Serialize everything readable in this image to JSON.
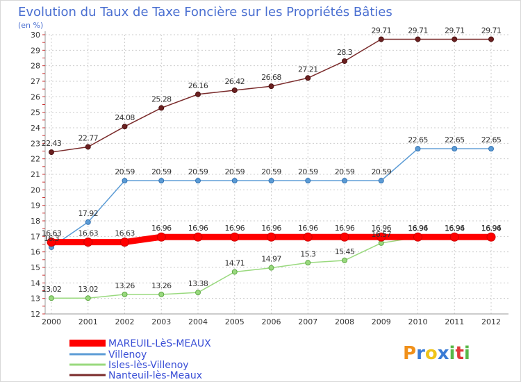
{
  "chart_data": {
    "type": "line",
    "title": "Evolution du Taux de Taxe Foncière sur les Propriétés Bâties",
    "subtitle": "(en %)",
    "x": [
      "2000",
      "2001",
      "2002",
      "2003",
      "2004",
      "2005",
      "2006",
      "2007",
      "2008",
      "2009",
      "2010",
      "2011",
      "2012"
    ],
    "ylim": [
      12,
      30
    ],
    "yticks": [
      12,
      13,
      14,
      15,
      16,
      17,
      18,
      19,
      20,
      21,
      22,
      23,
      24,
      25,
      26,
      27,
      28,
      29,
      30
    ],
    "grid": true,
    "legend_position": "bottom-left",
    "series": [
      {
        "name": "MAREUIL-LèS-MEAUX",
        "color": "#ff0000",
        "values": [
          16.63,
          16.63,
          16.63,
          16.96,
          16.96,
          16.96,
          16.96,
          16.96,
          16.96,
          16.96,
          16.96,
          16.96,
          16.96
        ],
        "labels": [
          "16.63",
          "16.63",
          "16.63",
          "16.96",
          "16.96",
          "16.96",
          "16.96",
          "16.96",
          "16.96",
          "16.96",
          "16.96",
          "16.96",
          "16.96"
        ]
      },
      {
        "name": "Villenoy",
        "color": "#5b9bd5",
        "values": [
          16.3,
          17.92,
          20.59,
          20.59,
          20.59,
          20.59,
          20.59,
          20.59,
          20.59,
          20.59,
          22.65,
          22.65,
          22.65
        ],
        "labels": [
          "16.3",
          "17.92",
          "20.59",
          "20.59",
          "20.59",
          "20.59",
          "20.59",
          "20.59",
          "20.59",
          "20.59",
          "22.65",
          "22.65",
          "22.65"
        ]
      },
      {
        "name": "Isles-lès-Villenoy",
        "color": "#99d97e",
        "values": [
          13.02,
          13.02,
          13.26,
          13.26,
          13.38,
          14.71,
          14.97,
          15.3,
          15.45,
          16.57,
          16.94,
          16.94,
          16.94
        ],
        "labels": [
          "13.02",
          "13.02",
          "13.26",
          "13.26",
          "13.38",
          "14.71",
          "14.97",
          "15.3",
          "15.45",
          "16.57",
          "16.94",
          "16.94",
          "16.94"
        ]
      },
      {
        "name": "Nanteuil-lès-Meaux",
        "color": "#7a2b2b",
        "values": [
          22.43,
          22.77,
          24.08,
          25.28,
          26.16,
          26.42,
          26.68,
          27.21,
          28.3,
          29.71,
          29.71,
          29.71,
          29.71
        ],
        "labels": [
          "22.43",
          "22.77",
          "24.08",
          "25.28",
          "26.16",
          "26.42",
          "26.68",
          "27.21",
          "28.3",
          "29.71",
          "29.71",
          "29.71",
          "29.71"
        ]
      }
    ]
  },
  "logo": {
    "text": "Proxiti"
  }
}
